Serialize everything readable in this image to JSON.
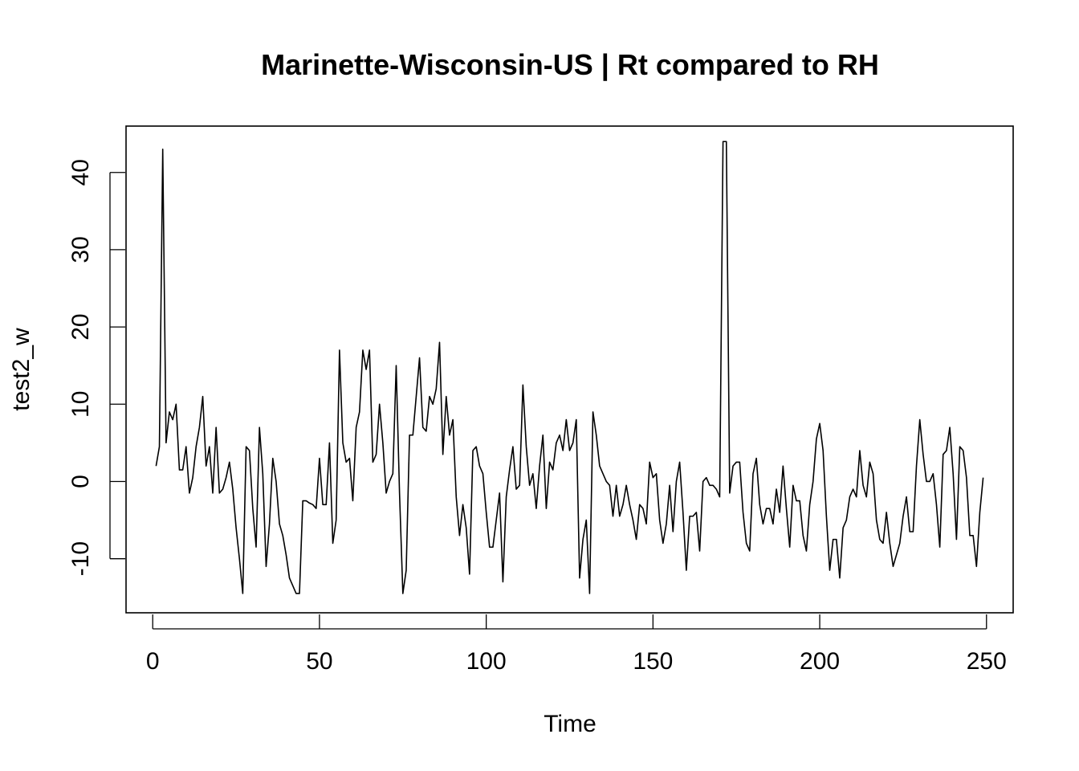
{
  "chart_data": {
    "type": "line",
    "title": "Marinette-Wisconsin-US | Rt compared to RH",
    "xlabel": "Time",
    "ylabel": "test2_w",
    "xlim": [
      -8,
      258
    ],
    "ylim": [
      -17,
      46
    ],
    "xticks": [
      0,
      50,
      100,
      150,
      200,
      250
    ],
    "xtick_labels": [
      "0",
      "50",
      "100",
      "150",
      "200",
      "250"
    ],
    "yticks": [
      -10,
      0,
      10,
      20,
      30,
      40
    ],
    "ytick_labels": [
      "-10",
      "0",
      "10",
      "20",
      "30",
      "40"
    ],
    "grid": false,
    "legend": "none",
    "line_color": "#000000",
    "series": [
      {
        "x_start": 1,
        "x_step": 1,
        "values": [
          2,
          4.5,
          43,
          5,
          9,
          8,
          10,
          1.5,
          1.5,
          4.5,
          -1.5,
          0.5,
          4.5,
          7,
          11,
          2,
          4.5,
          -1.5,
          7,
          -1.5,
          -1,
          0.5,
          2.5,
          -1,
          -6,
          -10,
          -14.5,
          4.5,
          4,
          -3.5,
          -8.5,
          7,
          1,
          -11,
          -5.5,
          3,
          0,
          -5.5,
          -7,
          -9.5,
          -12.5,
          -13.5,
          -14.5,
          -14.5,
          -2.5,
          -2.5,
          -2.8,
          -3,
          -3.5,
          3,
          -3,
          -3,
          5,
          -8,
          -5,
          17,
          5,
          2.5,
          3,
          -2.5,
          7,
          9,
          17,
          14.5,
          17,
          2.5,
          3.5,
          10,
          5,
          -1.5,
          0,
          1,
          15,
          -1.5,
          -14.5,
          -11.5,
          6,
          6,
          11,
          16,
          7,
          6.5,
          11,
          10,
          12,
          18,
          3.5,
          11,
          6,
          8,
          -2,
          -7,
          -3,
          -6,
          -12,
          4,
          4.5,
          2,
          1,
          -4,
          -8.5,
          -8.5,
          -5,
          -1.5,
          -13,
          -2,
          1.5,
          4.5,
          -1,
          -0.5,
          12.5,
          4.5,
          -0.5,
          1,
          -3.5,
          2,
          6,
          -3.5,
          2.5,
          1.5,
          5,
          6,
          4,
          8,
          4,
          5,
          8,
          -12.5,
          -7.5,
          -5,
          -14.5,
          9,
          6,
          2,
          1,
          0,
          -0.5,
          -4.5,
          -0.5,
          -4.5,
          -3,
          -0.5,
          -3,
          -5,
          -7.5,
          -3,
          -3.5,
          -5.5,
          2.5,
          0.5,
          1,
          -5,
          -8,
          -5.5,
          -0.5,
          -6.5,
          0,
          2.5,
          -4,
          -11.5,
          -4.5,
          -4.5,
          -4,
          -9,
          0,
          0.5,
          -0.5,
          -0.5,
          -1,
          -2,
          44,
          44,
          -1.5,
          2,
          2.5,
          2.5,
          -4,
          -8,
          -9,
          1,
          3,
          -3,
          -5.5,
          -3.5,
          -3.5,
          -5.5,
          -1,
          -4,
          2,
          -3.5,
          -8.5,
          -0.5,
          -2.5,
          -2.5,
          -7,
          -9,
          -3,
          0,
          5.5,
          7.5,
          4,
          -4.5,
          -11.5,
          -7.5,
          -7.5,
          -12.5,
          -6,
          -5,
          -2,
          -1,
          -2,
          4,
          -0.5,
          -2,
          2.5,
          1,
          -5,
          -7.5,
          -8,
          -4,
          -8,
          -11,
          -9.5,
          -8,
          -4.5,
          -2,
          -6.5,
          -6.5,
          2,
          8,
          3.5,
          0,
          0,
          1,
          -3,
          -8.5,
          3.5,
          4,
          7,
          1,
          -7.5,
          4.5,
          4,
          0.5,
          -7,
          -7,
          -11,
          -4,
          0.5
        ]
      }
    ]
  }
}
